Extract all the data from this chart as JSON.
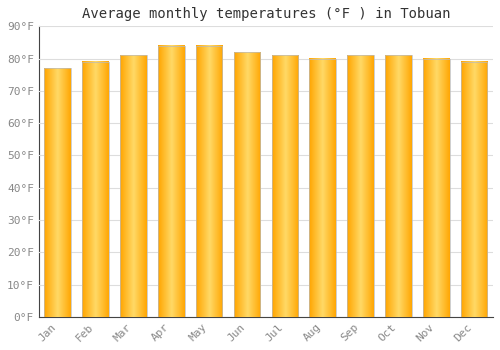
{
  "title": "Average monthly temperatures (°F ) in Tobuan",
  "months": [
    "Jan",
    "Feb",
    "Mar",
    "Apr",
    "May",
    "Jun",
    "Jul",
    "Aug",
    "Sep",
    "Oct",
    "Nov",
    "Dec"
  ],
  "values": [
    77,
    79,
    81,
    84,
    84,
    82,
    81,
    80,
    81,
    81,
    80,
    79
  ],
  "bar_color_center": "#FFD966",
  "bar_color_edge": "#FFA500",
  "bar_edge_color": "#BBBBBB",
  "ylim": [
    0,
    90
  ],
  "yticks": [
    0,
    10,
    20,
    30,
    40,
    50,
    60,
    70,
    80,
    90
  ],
  "ytick_labels": [
    "0°F",
    "10°F",
    "20°F",
    "30°F",
    "40°F",
    "50°F",
    "60°F",
    "70°F",
    "80°F",
    "90°F"
  ],
  "background_color": "#FFFFFF",
  "grid_color": "#DDDDDD",
  "title_fontsize": 10,
  "tick_fontsize": 8,
  "font_color": "#888888",
  "bar_width": 0.7
}
